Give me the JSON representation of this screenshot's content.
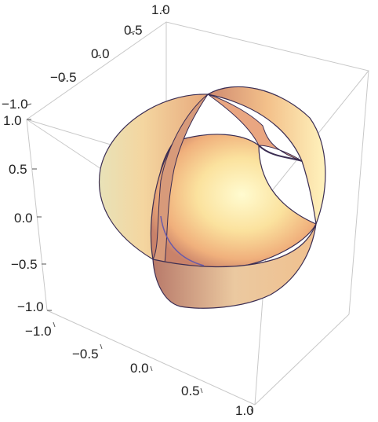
{
  "figure": {
    "type": "3d-surface",
    "description_visible": "sphere surface with cut-away bands rendered in a 3D bounding box",
    "colors": {
      "surface_light": "#fffbd0",
      "surface_mid": "#f7c58a",
      "surface_dark": "#c9826a",
      "edge_dark": "#3b2d52",
      "box": "#c8c8c8"
    }
  },
  "axes": {
    "top_axis": {
      "ticks": [
        "1.0",
        "0.5",
        "0.0",
        "−0.5",
        "−1.0"
      ]
    },
    "left_axis": {
      "ticks": [
        "1.0",
        "0.5",
        "0.0",
        "−0.5",
        "−1.0"
      ]
    },
    "bottom_axis": {
      "ticks": [
        "−1.0",
        "−0.5",
        "0.0",
        "0.5",
        "1.0"
      ]
    }
  }
}
